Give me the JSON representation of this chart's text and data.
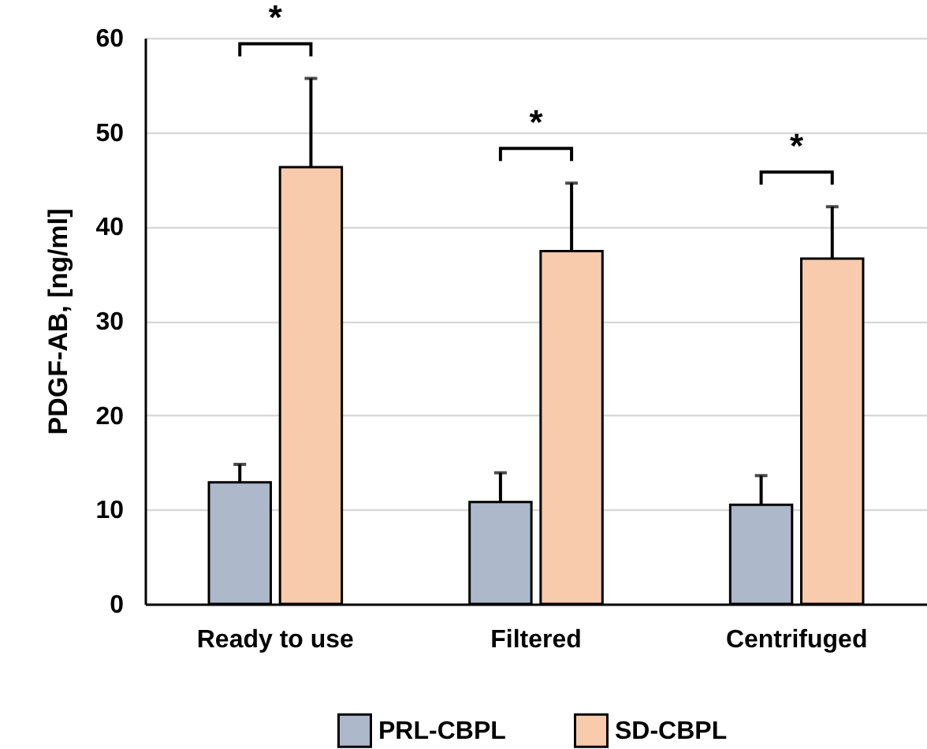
{
  "chart_data": {
    "type": "bar",
    "ylabel": "PDGF-AB, [ng/ml]",
    "categories": [
      "Ready to use",
      "Filtered",
      "Centrifuged"
    ],
    "series": [
      {
        "name": "PRL-CBPL",
        "color": "#adb9ca",
        "values": [
          12.9,
          10.8,
          10.5
        ],
        "errors": [
          [
            12.9,
            14.8
          ],
          [
            10.8,
            13.9
          ],
          [
            10.5,
            13.6
          ]
        ]
      },
      {
        "name": "SD-CBPL",
        "color": "#f8cbad",
        "values": [
          46.3,
          37.4,
          36.6
        ],
        "errors": [
          [
            46.3,
            55.7
          ],
          [
            37.4,
            44.6
          ],
          [
            36.6,
            42.1
          ]
        ]
      }
    ],
    "ylim": [
      0,
      60
    ],
    "yticks": [
      0,
      10,
      20,
      30,
      40,
      50,
      60
    ],
    "grid": "y",
    "legend": "bottom",
    "annotations": [
      "*",
      "*",
      "*"
    ]
  }
}
